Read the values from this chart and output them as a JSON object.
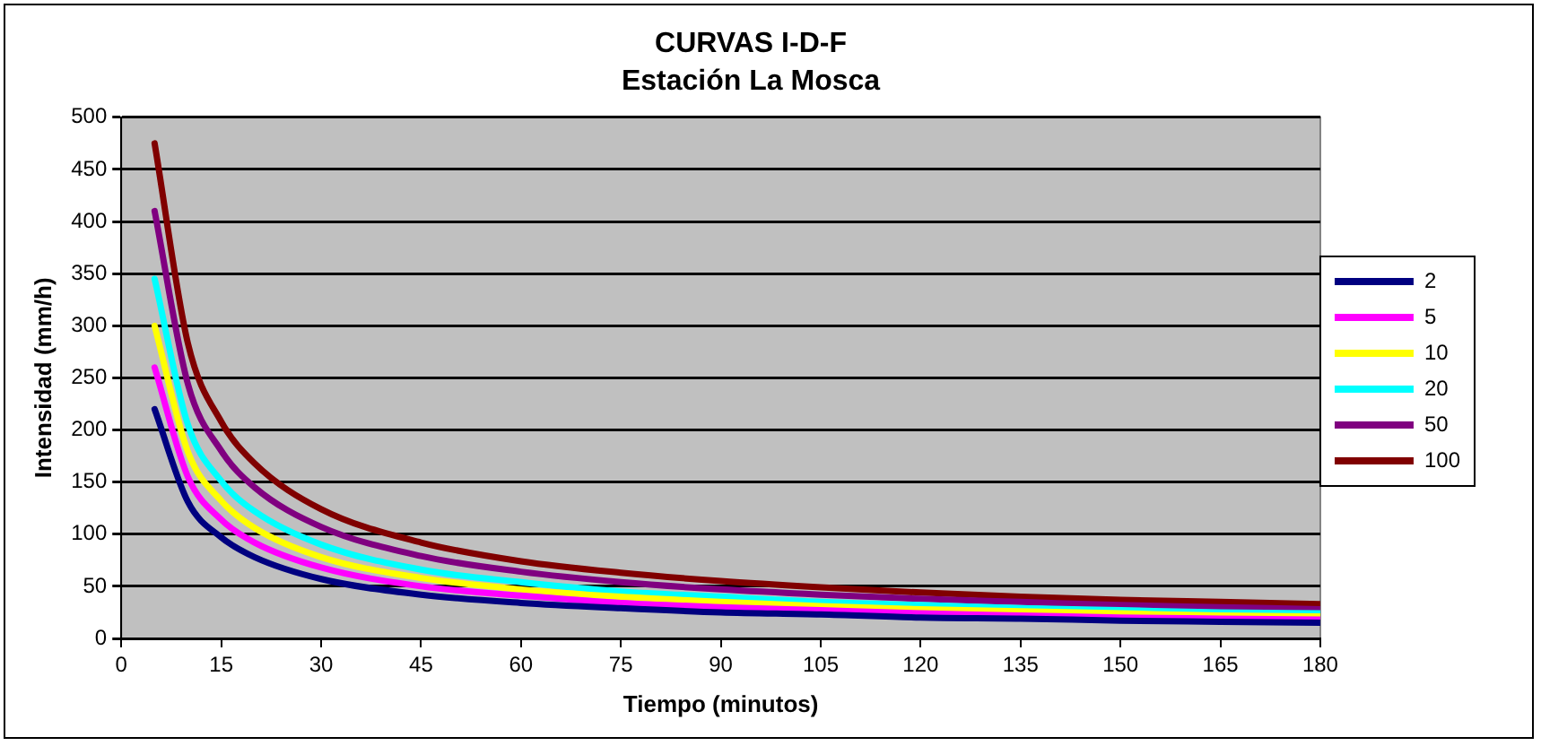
{
  "chart_data": {
    "type": "line",
    "title": "CURVAS I-D-F",
    "subtitle": "Estación La Mosca",
    "xlabel": "Tiempo (minutos)",
    "ylabel": "Intensidad (mm/h)",
    "x": [
      5,
      10,
      15,
      20,
      30,
      45,
      60,
      75,
      90,
      105,
      120,
      135,
      150,
      165,
      180
    ],
    "series": [
      {
        "name": "2",
        "color": "#000080",
        "values": [
          220,
          131,
          97,
          78,
          57,
          42,
          34,
          29,
          25,
          23,
          20,
          19,
          17,
          16,
          15
        ]
      },
      {
        "name": "5",
        "color": "#ff00ff",
        "values": [
          260,
          155,
          114,
          92,
          68,
          50,
          41,
          34,
          30,
          27,
          24,
          22,
          20,
          19,
          18
        ]
      },
      {
        "name": "10",
        "color": "#ffff00",
        "values": [
          300,
          179,
          132,
          106,
          78,
          58,
          47,
          40,
          35,
          31,
          28,
          26,
          24,
          22,
          21
        ]
      },
      {
        "name": "20",
        "color": "#00ffff",
        "values": [
          345,
          205,
          151,
          122,
          90,
          66,
          54,
          45,
          40,
          35,
          32,
          29,
          27,
          25,
          24
        ]
      },
      {
        "name": "50",
        "color": "#800080",
        "values": [
          410,
          244,
          180,
          145,
          107,
          79,
          64,
          54,
          47,
          42,
          38,
          35,
          32,
          30,
          28
        ]
      },
      {
        "name": "100",
        "color": "#800000",
        "values": [
          475,
          283,
          208,
          168,
          124,
          92,
          74,
          63,
          55,
          49,
          44,
          40,
          37,
          35,
          33
        ]
      }
    ],
    "xlim": [
      0,
      180
    ],
    "xticks": [
      0,
      15,
      30,
      45,
      60,
      75,
      90,
      105,
      120,
      135,
      150,
      165,
      180
    ],
    "ylim": [
      0,
      500
    ],
    "yticks": [
      0,
      50,
      100,
      150,
      200,
      250,
      300,
      350,
      400,
      450,
      500
    ],
    "grid": "y",
    "legend": "right",
    "marker": "none",
    "line_style": "solid"
  }
}
